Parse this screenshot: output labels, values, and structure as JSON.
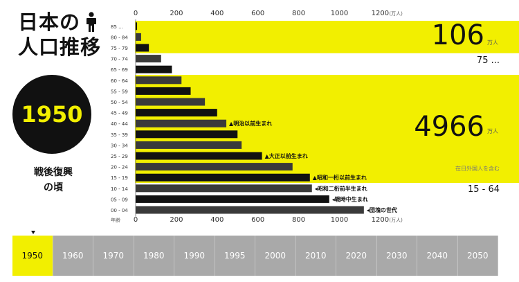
{
  "title": {
    "line1": "日本の",
    "line2": "人口推移"
  },
  "current_year": "1950",
  "era_caption": {
    "line1": "戦後復興",
    "line2": "の頃"
  },
  "timeline": {
    "years": [
      "1950",
      "1960",
      "1970",
      "1980",
      "1990",
      "1995",
      "2000",
      "2010",
      "2020",
      "2030",
      "2040",
      "2050"
    ],
    "active": "1950"
  },
  "chart_data": {
    "type": "bar",
    "orientation": "horizontal",
    "categories": [
      "85 ...",
      "80 - 84",
      "75 - 79",
      "70 - 74",
      "65 - 69",
      "60 - 64",
      "55 - 59",
      "50 - 54",
      "45 - 49",
      "40 - 44",
      "35 - 39",
      "30 - 34",
      "25 - 29",
      "20 - 24",
      "15 - 19",
      "10 - 14",
      "05 - 09",
      "00 - 04"
    ],
    "values": [
      7,
      27,
      65,
      125,
      178,
      225,
      270,
      340,
      400,
      445,
      500,
      520,
      620,
      770,
      855,
      865,
      950,
      1120
    ],
    "xlim": [
      0,
      1200
    ],
    "xticks": [
      "0",
      "200",
      "400",
      "600",
      "800",
      "1000",
      "1200"
    ],
    "x_unit": "(万人)",
    "x_label_bottom": "年齢",
    "colors": {
      "highlight": "#f2ef00",
      "bar_dark": "#111111",
      "bar_gray": "#3a3a3a"
    },
    "groups": [
      {
        "label": "75 ...",
        "value": "106",
        "unit": "万人"
      },
      {
        "label": "15 - 64",
        "value": "4966",
        "unit": "万人",
        "note": "在日外国人を含む"
      }
    ],
    "annotations": [
      {
        "category": "40 - 44",
        "text": "▲明治以前生まれ"
      },
      {
        "category": "25 - 29",
        "text": "▲大正以前生まれ"
      },
      {
        "category": "15 - 19",
        "text": "▲昭和一桁以前生まれ"
      },
      {
        "category": "10 - 14",
        "text": "◂昭和二桁前半生まれ"
      },
      {
        "category": "05 - 09",
        "text": "◂戦時中生まれ"
      },
      {
        "category": "00 - 04",
        "text": "◂団塊の世代"
      }
    ]
  }
}
